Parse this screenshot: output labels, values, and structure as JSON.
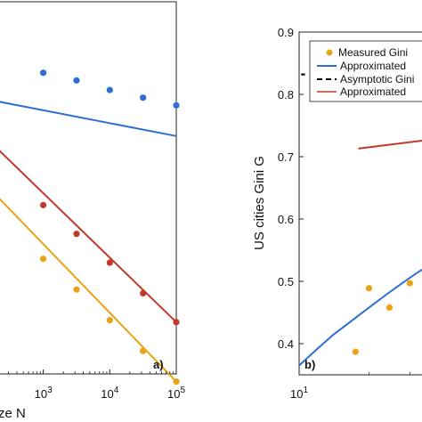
{
  "chart_data": [
    {
      "panel_label": "a)",
      "type": "line",
      "x_scale": "log",
      "y_scale": "log",
      "xlabel_visible": "ze N",
      "x_ticks": [
        {
          "value": 1000,
          "base": "10",
          "exp": "3"
        },
        {
          "value": 10000,
          "base": "10",
          "exp": "4"
        },
        {
          "value": 100000,
          "base": "10",
          "exp": "5"
        }
      ],
      "xlim": [
        210,
        100000
      ],
      "ylim_log10": [
        -3.02,
        -1.08
      ],
      "series": [
        {
          "color": "#2f6fd1",
          "points_log10y": [
            [
              1000,
              -1.45
            ],
            [
              3162,
              -1.49
            ],
            [
              10000,
              -1.54
            ],
            [
              31623,
              -1.58
            ],
            [
              100000,
              -1.62
            ]
          ],
          "line_log10y": [
            [
              210,
              -1.6
            ],
            [
              100000,
              -1.78
            ]
          ]
        },
        {
          "color": "#c0392b",
          "points_log10y": [
            [
              1000,
              -2.14
            ],
            [
              3162,
              -2.29
            ],
            [
              10000,
              -2.44
            ],
            [
              31623,
              -2.6
            ],
            [
              100000,
              -2.75
            ]
          ],
          "line_log10y": [
            [
              210,
              -1.85
            ],
            [
              100000,
              -2.75
            ]
          ]
        },
        {
          "color": "#e8a317",
          "points_log10y": [
            [
              1000,
              -2.42
            ],
            [
              3162,
              -2.58
            ],
            [
              10000,
              -2.74
            ],
            [
              31623,
              -2.9
            ],
            [
              100000,
              -3.06
            ]
          ],
          "line_log10y": [
            [
              210,
              -2.1
            ],
            [
              100000,
              -3.06
            ]
          ]
        }
      ]
    },
    {
      "panel_label": "b)",
      "type": "scatter",
      "x_scale": "log",
      "ylabel": "US cities Gini G",
      "x_ticks": [
        {
          "value": 10,
          "base": "10",
          "exp": "1"
        }
      ],
      "xlim": [
        10,
        36
      ],
      "ylim": [
        0.35,
        0.9
      ],
      "y_ticks": [
        "0.4",
        "0.5",
        "0.6",
        "0.7",
        "0.8",
        "0.9"
      ],
      "legend": [
        {
          "label": "Measured Gini",
          "marker": "dot",
          "color": "#e8a317"
        },
        {
          "label": "Approximated",
          "marker": "line",
          "color": "#2f6fd1"
        },
        {
          "label": "Asymptotic Gini",
          "marker": "dash",
          "color": "#000000"
        },
        {
          "label": "Approximated",
          "marker": "line",
          "color": "#c0392b"
        }
      ],
      "measured_gini": {
        "x": [
          17.5,
          20,
          24.5,
          30
        ],
        "y": [
          0.387,
          0.489,
          0.458,
          0.497
        ]
      },
      "approximated_blue_curve": {
        "x": [
          10,
          12,
          14,
          17,
          20,
          24,
          28,
          32,
          36
        ],
        "y": [
          0.365,
          0.392,
          0.414,
          0.438,
          0.458,
          0.48,
          0.498,
          0.513,
          0.525
        ]
      },
      "approximated_red_curve": {
        "x": [
          18,
          36
        ],
        "y": [
          0.713,
          0.727
        ]
      },
      "asymptotic_gini": {
        "y": 0.832
      }
    }
  ]
}
